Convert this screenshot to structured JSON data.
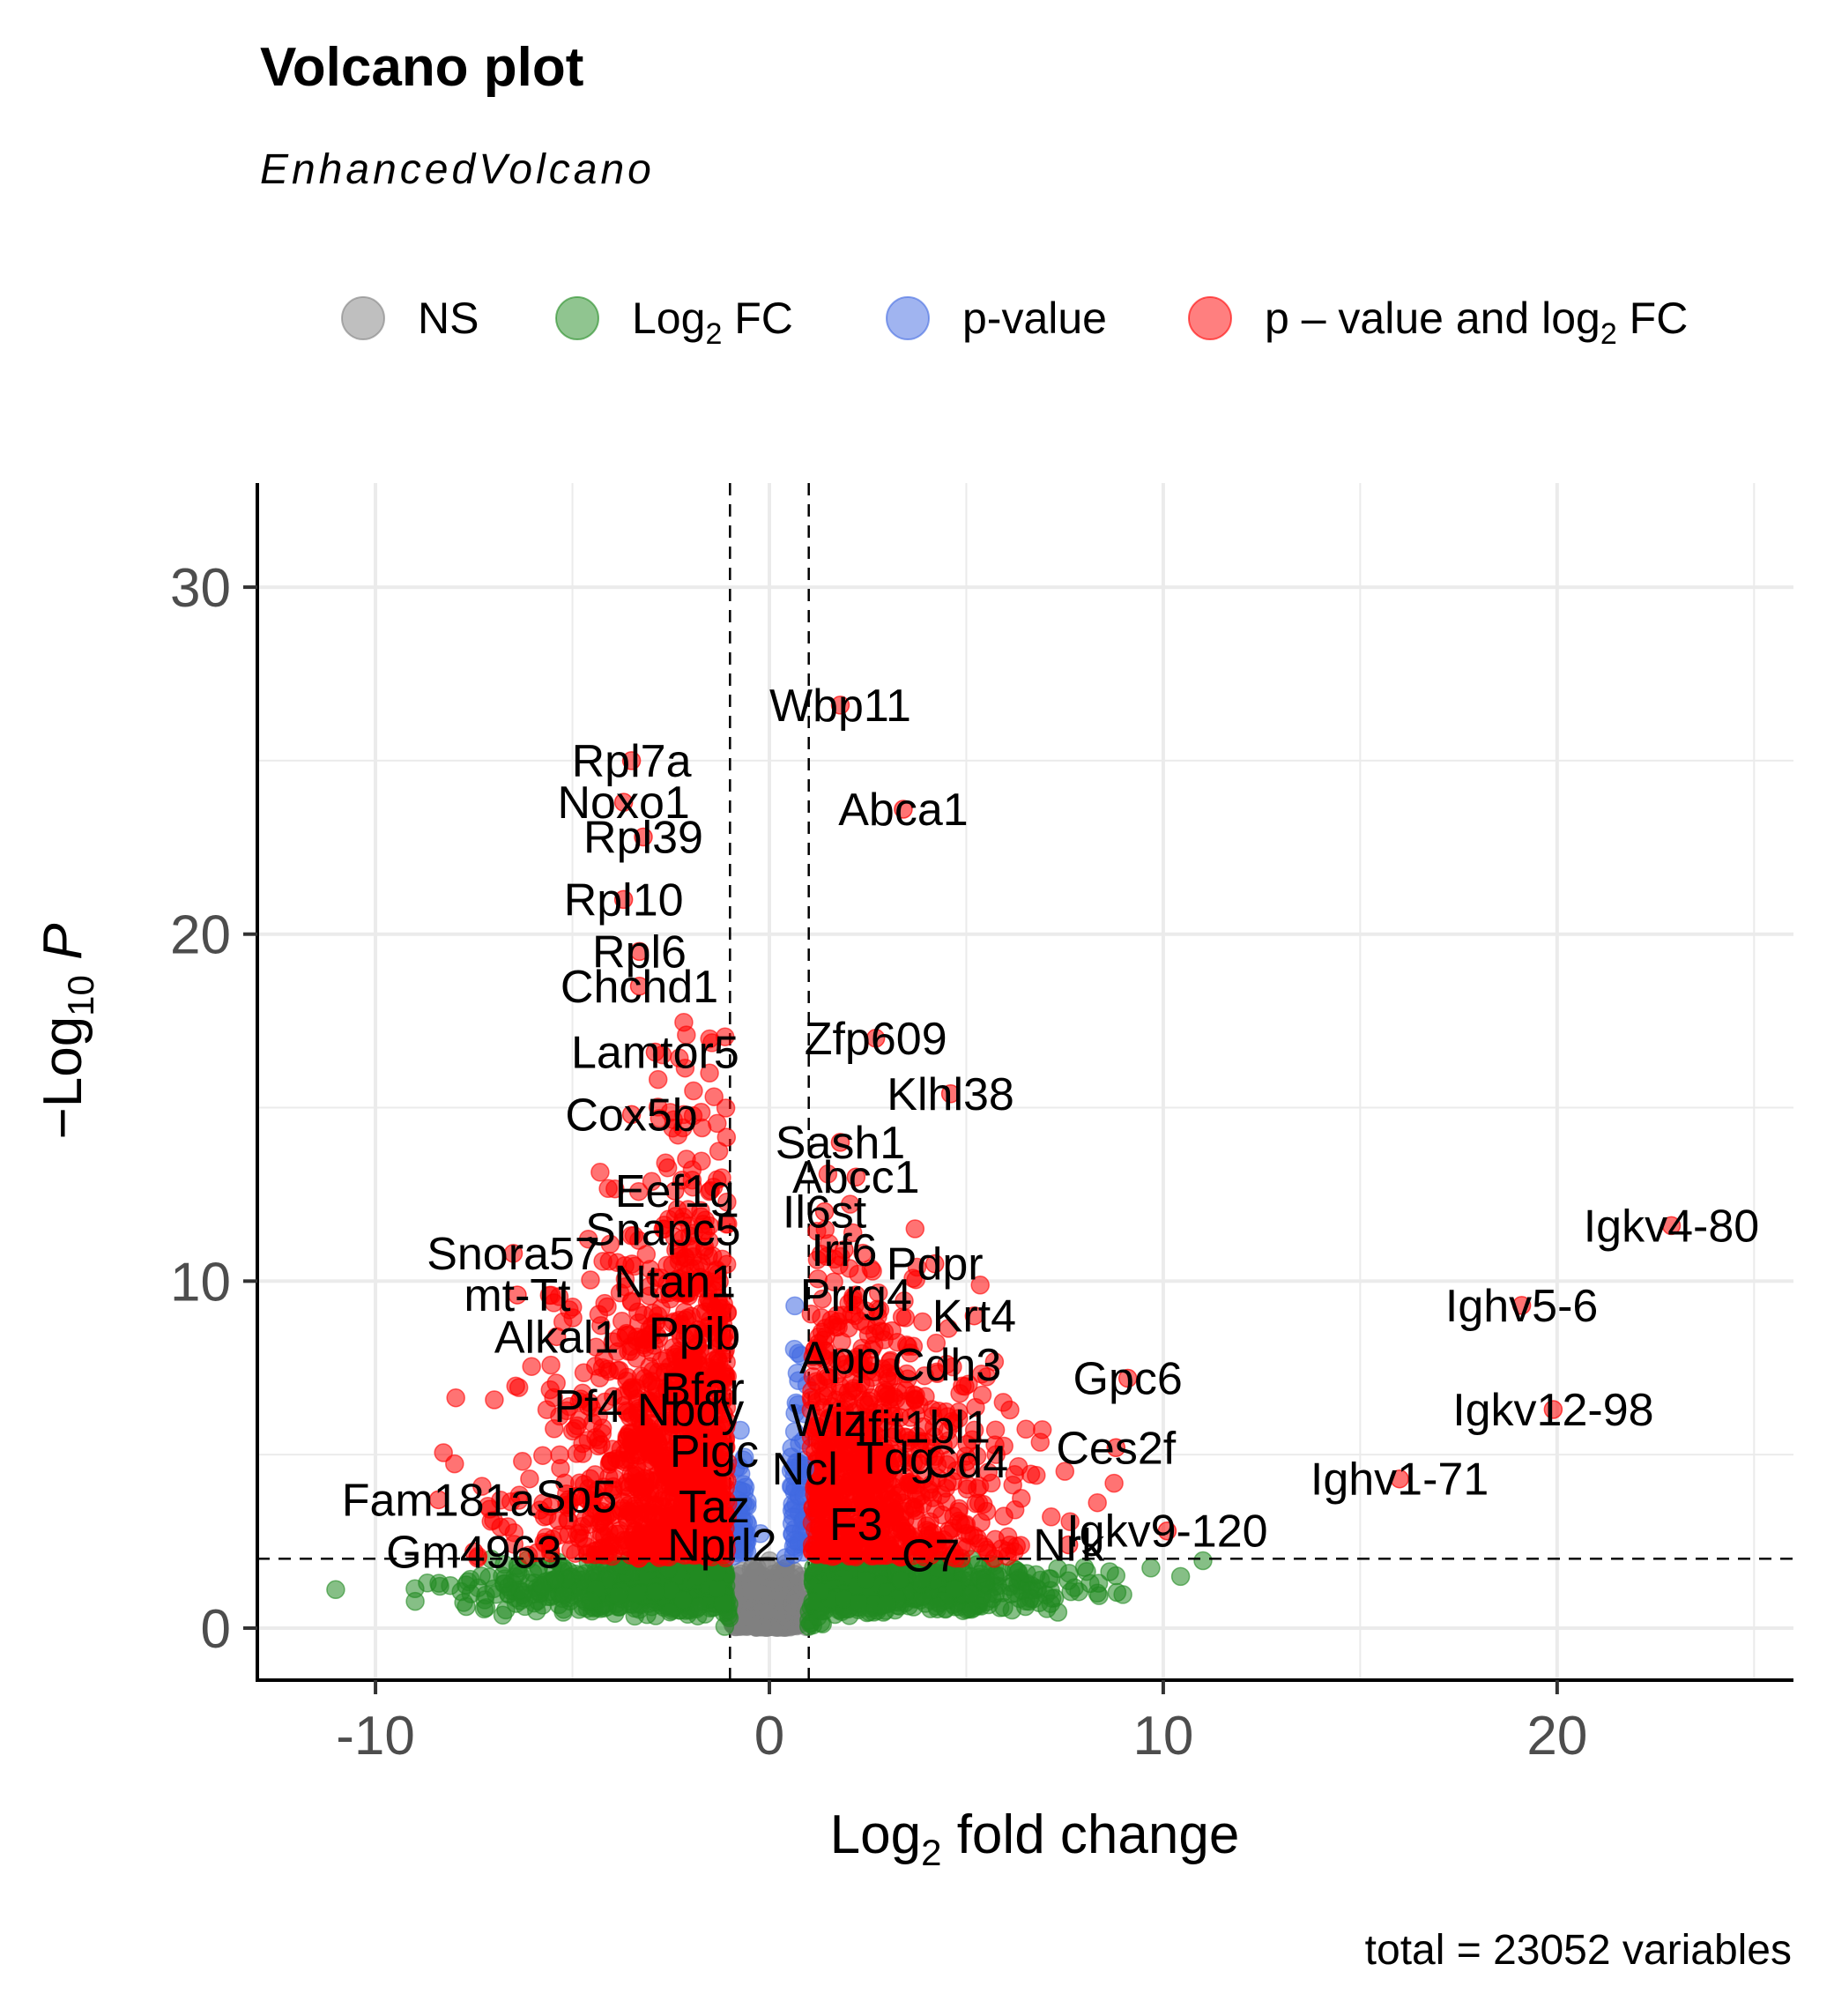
{
  "chart_data": {
    "type": "scatter",
    "title": "Volcano plot",
    "subtitle": "EnhancedVolcano",
    "caption": "total = 23052 variables",
    "xlabel": {
      "main": "Log",
      "sub": "2",
      "rest": " fold change"
    },
    "ylabel": {
      "minus": "−",
      "main": "Log",
      "sub": "10",
      "var": "P"
    },
    "xlim": [
      -13,
      26
    ],
    "ylim": [
      -1.5,
      33
    ],
    "x_ticks": [
      -10,
      0,
      10,
      20
    ],
    "x_tick_labels": [
      "-10",
      "0",
      "10",
      "20"
    ],
    "y_ticks": [
      0,
      10,
      20,
      30
    ],
    "y_tick_labels": [
      "0",
      "10",
      "20",
      "30"
    ],
    "grid": true,
    "legend_position": "top",
    "fc_cutoff": 1,
    "p_cutoff_neglog10": 2,
    "legend": [
      {
        "key": "ns",
        "text": "NS",
        "sub": "",
        "rest": "",
        "color": "#808080"
      },
      {
        "key": "fc",
        "text": "Log",
        "sub": "2",
        "rest": " FC",
        "color": "#228b22"
      },
      {
        "key": "p",
        "text": "p-value",
        "sub": "",
        "rest": "",
        "color": "#4169e1"
      },
      {
        "key": "both",
        "text": "p – value and log",
        "sub": "2",
        "rest": " FC",
        "color": "#ff0000"
      }
    ],
    "colors": {
      "ns": "#808080",
      "fc": "#228b22",
      "p": "#4169e1",
      "both": "#ff0000"
    },
    "labeled_genes": [
      {
        "gene": "Wbp11",
        "x": 1.8,
        "y": 26.6
      },
      {
        "gene": "Rpl7a",
        "x": -3.5,
        "y": 25.0
      },
      {
        "gene": "Noxo1",
        "x": -3.7,
        "y": 23.8
      },
      {
        "gene": "Abca1",
        "x": 3.4,
        "y": 23.6
      },
      {
        "gene": "Rpl39",
        "x": -3.2,
        "y": 22.8
      },
      {
        "gene": "Rpl10",
        "x": -3.7,
        "y": 21.0
      },
      {
        "gene": "Rpl6",
        "x": -3.3,
        "y": 19.5
      },
      {
        "gene": "Chchd1",
        "x": -3.3,
        "y": 18.5
      },
      {
        "gene": "Zfp609",
        "x": 2.7,
        "y": 17.0
      },
      {
        "gene": "Lamtor5",
        "x": -2.9,
        "y": 16.6
      },
      {
        "gene": "Klhl38",
        "x": 4.6,
        "y": 15.4
      },
      {
        "gene": "Cox5b",
        "x": -3.5,
        "y": 14.8
      },
      {
        "gene": "Sash1",
        "x": 1.8,
        "y": 14.0
      },
      {
        "gene": "Abcc1",
        "x": 2.2,
        "y": 13.0
      },
      {
        "gene": "Eef1g",
        "x": -2.4,
        "y": 12.6
      },
      {
        "gene": "Il6st",
        "x": 1.4,
        "y": 12.0
      },
      {
        "gene": "Igkv4-80",
        "x": 22.9,
        "y": 11.6
      },
      {
        "gene": "Snapc5",
        "x": -2.7,
        "y": 11.5
      },
      {
        "gene": "Pdpr",
        "x": 4.2,
        "y": 10.5
      },
      {
        "gene": "Irf6",
        "x": 1.9,
        "y": 10.9
      },
      {
        "gene": "Snora57",
        "x": -6.5,
        "y": 10.8
      },
      {
        "gene": "mt-Tt",
        "x": -6.4,
        "y": 9.6
      },
      {
        "gene": "Ntan1",
        "x": -2.4,
        "y": 10.0
      },
      {
        "gene": "Prrg4",
        "x": 2.2,
        "y": 9.6
      },
      {
        "gene": "Krt4",
        "x": 5.2,
        "y": 9.0
      },
      {
        "gene": "Ighv5-6",
        "x": 19.1,
        "y": 9.3
      },
      {
        "gene": "Ppib",
        "x": -1.9,
        "y": 8.5
      },
      {
        "gene": "App",
        "x": 1.8,
        "y": 7.8
      },
      {
        "gene": "Alkal1",
        "x": -5.4,
        "y": 8.4
      },
      {
        "gene": "Cdh3",
        "x": 4.5,
        "y": 7.6
      },
      {
        "gene": "Gpc6",
        "x": 9.1,
        "y": 7.2
      },
      {
        "gene": "Bfar",
        "x": -1.7,
        "y": 6.9
      },
      {
        "gene": "Igkv12-98",
        "x": 19.9,
        "y": 6.3
      },
      {
        "gene": "Pf4",
        "x": -4.6,
        "y": 6.4
      },
      {
        "gene": "Nbdy",
        "x": -2.0,
        "y": 6.3
      },
      {
        "gene": "Wiz",
        "x": 1.5,
        "y": 6.0
      },
      {
        "gene": "Ifit1bl1",
        "x": 3.9,
        "y": 5.8
      },
      {
        "gene": "Ces2f",
        "x": 8.8,
        "y": 5.2
      },
      {
        "gene": "Pigc",
        "x": -1.4,
        "y": 5.1
      },
      {
        "gene": "Tdg",
        "x": 3.2,
        "y": 4.9
      },
      {
        "gene": "Ncl",
        "x": 0.9,
        "y": 4.6
      },
      {
        "gene": "Cd4",
        "x": 5.0,
        "y": 4.8
      },
      {
        "gene": "Ighv1-71",
        "x": 16.0,
        "y": 4.3
      },
      {
        "gene": "Fam181a",
        "x": -8.4,
        "y": 3.7
      },
      {
        "gene": "Sp5",
        "x": -4.9,
        "y": 3.8
      },
      {
        "gene": "Taz",
        "x": -1.4,
        "y": 3.5
      },
      {
        "gene": "F3",
        "x": 2.2,
        "y": 3.0
      },
      {
        "gene": "Igkv9-120",
        "x": 10.1,
        "y": 2.8
      },
      {
        "gene": "Nrk",
        "x": 7.6,
        "y": 2.4
      },
      {
        "gene": "Nprl2",
        "x": -1.2,
        "y": 2.4
      },
      {
        "gene": "C7",
        "x": 4.1,
        "y": 2.1
      },
      {
        "gene": "Gm4963",
        "x": -7.5,
        "y": 2.2
      }
    ]
  }
}
